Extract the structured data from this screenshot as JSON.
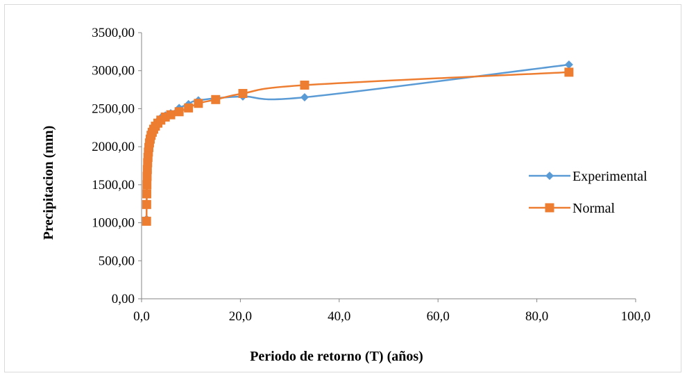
{
  "chart_data": {
    "type": "scatter",
    "title": "",
    "xlabel": "Periodo de retorno (T) (años)",
    "ylabel": "Precipitacion (mm)",
    "xlim": [
      0,
      100
    ],
    "ylim": [
      0,
      3500
    ],
    "x_ticks": [
      0,
      20,
      40,
      60,
      80,
      100
    ],
    "x_tick_labels": [
      "0,0",
      "20,0",
      "40,0",
      "60,0",
      "80,0",
      "100,0"
    ],
    "y_ticks": [
      0,
      500,
      1000,
      1500,
      2000,
      2500,
      3000,
      3500
    ],
    "y_tick_labels": [
      "0,00",
      "500,00",
      "1000,00",
      "1500,00",
      "2000,00",
      "2500,00",
      "3000,00",
      "3500,00"
    ],
    "grid": false,
    "legend_position": "right",
    "smooth_lines": true,
    "series": [
      {
        "name": "Experimental",
        "color": "#5B9BD5",
        "marker": "diamond",
        "x": [
          1.01,
          1.03,
          1.05,
          1.08,
          1.12,
          1.17,
          1.23,
          1.3,
          1.38,
          1.48,
          1.6,
          1.75,
          1.93,
          2.16,
          2.45,
          2.8,
          3.3,
          3.9,
          4.8,
          5.9,
          7.6,
          9.5,
          11.5,
          20.5,
          33.0,
          86.5
        ],
        "y": [
          1050,
          1250,
          1400,
          1520,
          1640,
          1740,
          1820,
          1890,
          1960,
          2020,
          2080,
          2130,
          2180,
          2220,
          2260,
          2300,
          2340,
          2380,
          2410,
          2440,
          2510,
          2560,
          2610,
          2660,
          2650,
          3080
        ]
      },
      {
        "name": "Normal",
        "color": "#ED7D31",
        "marker": "square",
        "x": [
          1.01,
          1.03,
          1.05,
          1.08,
          1.12,
          1.17,
          1.23,
          1.3,
          1.38,
          1.48,
          1.6,
          1.75,
          1.93,
          2.16,
          2.45,
          2.8,
          3.3,
          3.9,
          4.8,
          5.9,
          7.6,
          9.5,
          11.5,
          15.0,
          20.5,
          33.0,
          86.5
        ],
        "y": [
          1020,
          1240,
          1380,
          1500,
          1610,
          1700,
          1790,
          1860,
          1930,
          1990,
          2050,
          2100,
          2150,
          2190,
          2230,
          2270,
          2310,
          2350,
          2390,
          2420,
          2460,
          2510,
          2570,
          2620,
          2700,
          2810,
          2980
        ]
      }
    ]
  }
}
